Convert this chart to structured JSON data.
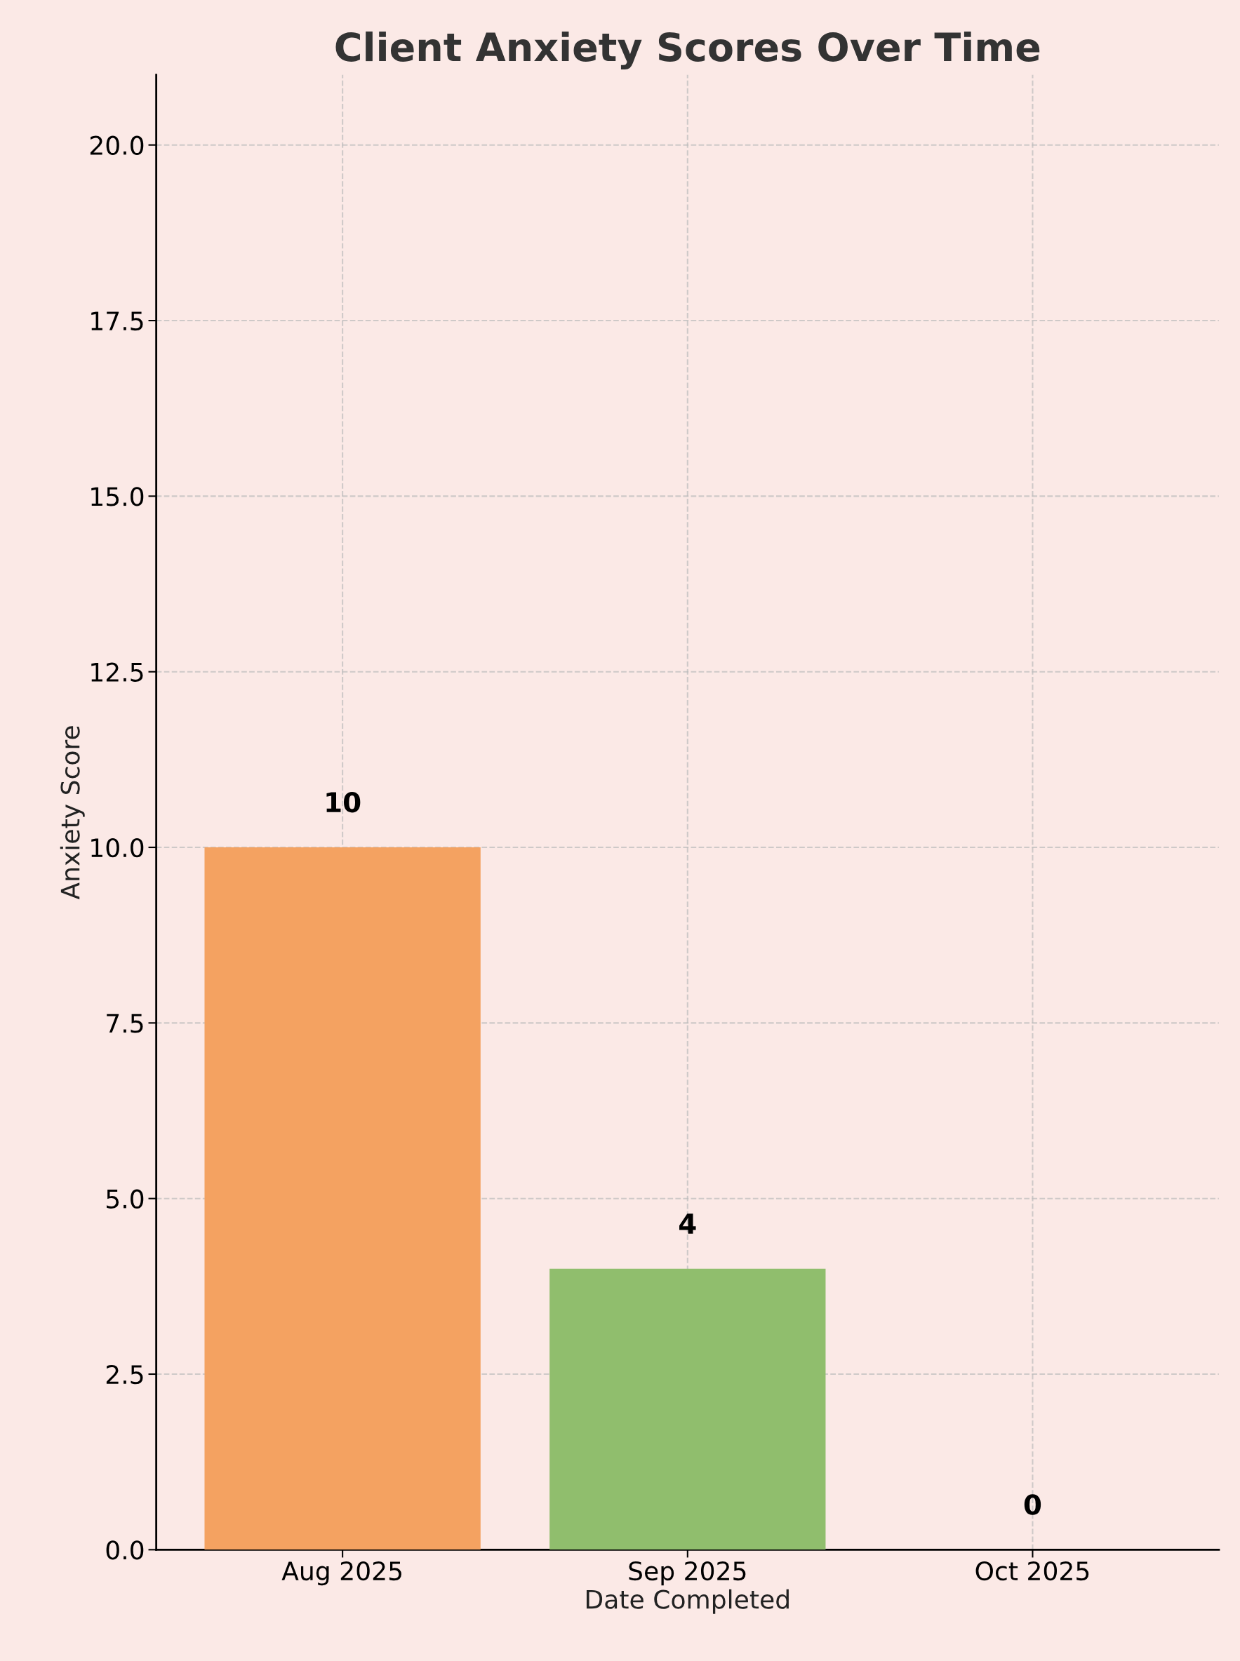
{
  "chart_data": {
    "type": "bar",
    "title": "Client Anxiety Scores Over Time",
    "xlabel": "Date Completed",
    "ylabel": "Anxiety Score",
    "categories": [
      "Aug 2025",
      "Sep 2025",
      "Oct 2025"
    ],
    "values": [
      10,
      4,
      0
    ],
    "colors": [
      "#f4a261",
      "#90be6d",
      "#577590"
    ],
    "ylim": [
      0,
      21
    ],
    "yticks": [
      {
        "value": 0,
        "label": "0.0"
      },
      {
        "value": 2.5,
        "label": "2.5"
      },
      {
        "value": 5,
        "label": "5.0"
      },
      {
        "value": 7.5,
        "label": "7.5"
      },
      {
        "value": 10,
        "label": "10.0"
      },
      {
        "value": 12.5,
        "label": "12.5"
      },
      {
        "value": 15,
        "label": "15.0"
      },
      {
        "value": 17.5,
        "label": "17.5"
      },
      {
        "value": 20,
        "label": "20.0"
      }
    ],
    "grid": true,
    "line_style": "dashed",
    "data_labels": true
  }
}
